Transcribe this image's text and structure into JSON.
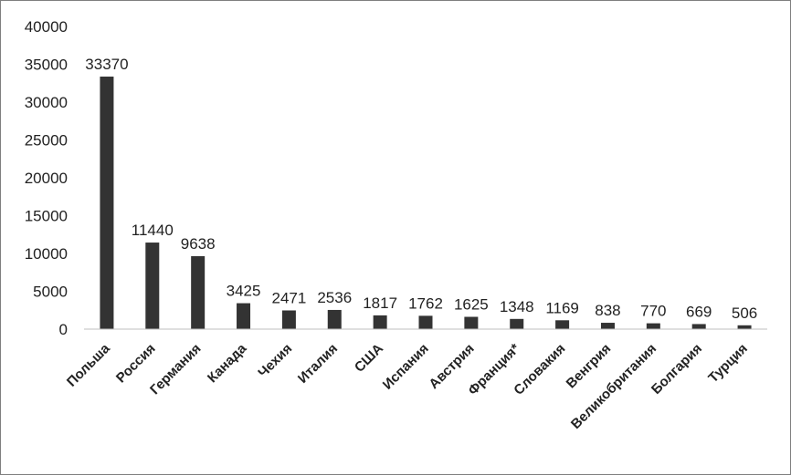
{
  "chart_data": {
    "type": "bar",
    "categories": [
      "Польша",
      "Россия",
      "Германия",
      "Канада",
      "Чехия",
      "Италия",
      "США",
      "Испания",
      "Австрия",
      "Франция*",
      "Словакия",
      "Венгрия",
      "Великобритания",
      "Болгария",
      "Турция"
    ],
    "values": [
      33370,
      11440,
      9638,
      3425,
      2471,
      2536,
      1817,
      1762,
      1625,
      1348,
      1169,
      838,
      770,
      669,
      506
    ],
    "data_labels": [
      "33370",
      "11440",
      "9638",
      "3425",
      "2471",
      "2536",
      "1817",
      "1762",
      "1625",
      "1348",
      "1169",
      "838",
      "770",
      "669",
      "506"
    ],
    "y_ticks": [
      "0",
      "5000",
      "10000",
      "15000",
      "20000",
      "25000",
      "30000",
      "35000",
      "40000"
    ],
    "ylim": [
      0,
      40000
    ],
    "title": "",
    "xlabel": "",
    "ylabel": "",
    "grid": false,
    "legend": "none",
    "bar_color": "#333333"
  }
}
